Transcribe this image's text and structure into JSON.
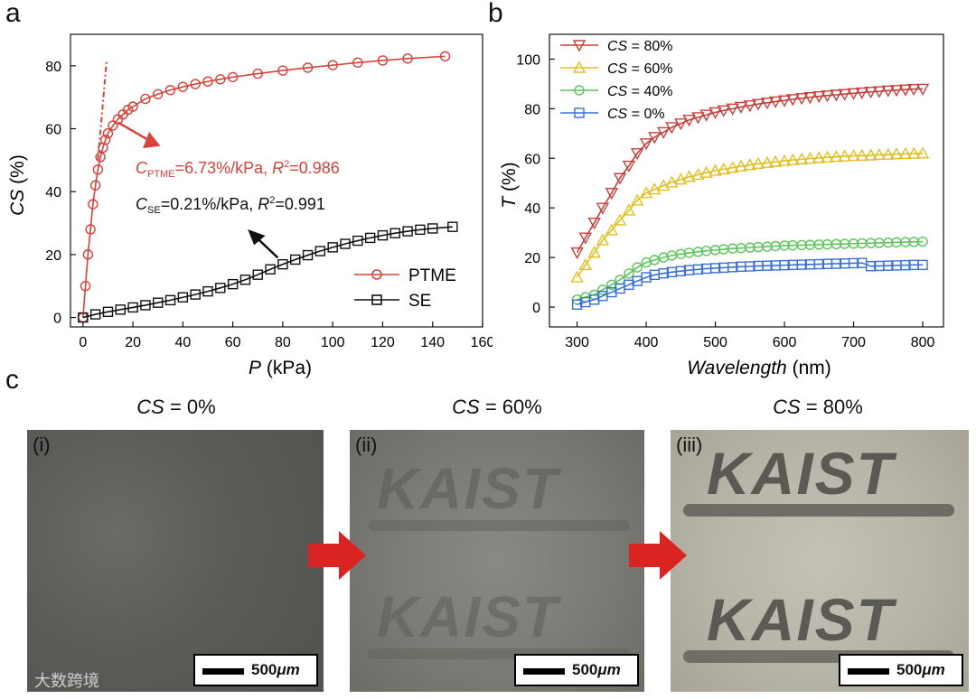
{
  "panels": {
    "a": "a",
    "b": "b",
    "c": "c"
  },
  "colors": {
    "ptme": "#d9413a",
    "se": "#111111",
    "cs80": "#c8403c",
    "cs60": "#e3c020",
    "cs40": "#5cc45a",
    "cs0": "#3b6fd8"
  },
  "chart_data": [
    {
      "type": "line",
      "title": "",
      "xlabel_italic": "P",
      "xlabel_unit": "(kPa)",
      "ylabel_italic": "CS",
      "ylabel_unit": "(%)",
      "xlim": [
        -5,
        160
      ],
      "ylim": [
        -3,
        90
      ],
      "xticks": [
        0,
        20,
        40,
        60,
        80,
        100,
        120,
        140,
        160
      ],
      "yticks": [
        0,
        20,
        40,
        60,
        80
      ],
      "legend_position": "bottom-right",
      "series": [
        {
          "name": "PTME",
          "marker": "circle",
          "color": "#d9413a",
          "x": [
            0,
            1,
            2,
            3,
            4,
            5,
            6,
            7,
            8,
            9,
            10,
            12,
            14,
            16,
            18,
            20,
            25,
            30,
            35,
            40,
            45,
            50,
            55,
            60,
            70,
            80,
            90,
            100,
            110,
            120,
            130,
            145
          ],
          "y": [
            0,
            10,
            20,
            28,
            36,
            42,
            47,
            51,
            54,
            56.5,
            58.5,
            61,
            63,
            64.5,
            66,
            67,
            69.5,
            71,
            72.3,
            73.3,
            74.2,
            75,
            75.7,
            76.4,
            77.5,
            78.5,
            79.4,
            80.2,
            81,
            81.7,
            82.3,
            83
          ]
        },
        {
          "name": "SE",
          "marker": "square",
          "color": "#111111",
          "x": [
            0,
            5,
            10,
            15,
            20,
            25,
            30,
            35,
            40,
            45,
            50,
            55,
            60,
            65,
            70,
            75,
            80,
            85,
            90,
            95,
            100,
            105,
            110,
            115,
            120,
            125,
            130,
            135,
            140,
            148
          ],
          "y": [
            0,
            1,
            1.8,
            2.5,
            3.2,
            3.9,
            4.7,
            5.5,
            6.4,
            7.3,
            8.3,
            9.4,
            10.6,
            12,
            13.6,
            15.3,
            16.9,
            18.4,
            19.8,
            21.1,
            22.3,
            23.4,
            24.4,
            25.3,
            26.1,
            26.8,
            27.4,
            27.9,
            28.3,
            28.8
          ]
        }
      ],
      "annotations": [
        {
          "text_main": "C",
          "text_sub": "PTME",
          "text_rest": "=6.73%/kPa, ",
          "r_label": "R",
          "r_sup": "2",
          "r_value": "=0.986",
          "color": "#d9413a"
        },
        {
          "text_main": "C",
          "text_sub": "SE",
          "text_rest": "=0.21%/kPa, ",
          "r_label": "R",
          "r_sup": "2",
          "r_value": "=0.991",
          "color": "#111111"
        }
      ]
    },
    {
      "type": "line",
      "title": "",
      "xlabel_italic": "Wavelength",
      "xlabel_unit": "(nm)",
      "ylabel_italic": "T",
      "ylabel_unit": "(%)",
      "xlim": [
        260,
        830
      ],
      "ylim": [
        -8,
        110
      ],
      "xticks": [
        300,
        400,
        500,
        600,
        700,
        800
      ],
      "yticks": [
        0,
        20,
        40,
        60,
        80,
        100
      ],
      "legend_position": "top-left",
      "x": [
        300,
        312,
        325,
        337,
        350,
        362,
        375,
        387,
        400,
        412,
        425,
        437,
        450,
        462,
        475,
        487,
        500,
        512,
        525,
        537,
        550,
        562,
        575,
        587,
        600,
        612,
        625,
        637,
        650,
        662,
        675,
        687,
        700,
        712,
        725,
        737,
        750,
        762,
        775,
        787,
        800
      ],
      "series": [
        {
          "name": "CS = 80%",
          "label_italic": "CS",
          "label_rest": " = 80%",
          "marker": "triangle-down",
          "color": "#c8403c",
          "values": [
            22,
            28,
            34,
            40,
            46,
            52,
            57,
            62,
            66,
            68.5,
            70.5,
            72.5,
            74,
            75.5,
            76.5,
            77.5,
            78.5,
            79.3,
            80,
            80.7,
            81.3,
            81.9,
            82.4,
            82.9,
            83.3,
            83.8,
            84.2,
            84.6,
            85,
            85.3,
            85.6,
            85.9,
            86.2,
            86.5,
            86.8,
            87,
            87.3,
            87.5,
            87.7,
            87.9,
            88
          ]
        },
        {
          "name": "CS = 60%",
          "label_italic": "CS",
          "label_rest": " = 60%",
          "marker": "triangle-up",
          "color": "#e3c020",
          "values": [
            12,
            17,
            22,
            27,
            31,
            35,
            39,
            43,
            46,
            47.5,
            49,
            50.3,
            51.5,
            52.5,
            53.4,
            54.2,
            55,
            55.6,
            56.2,
            56.8,
            57.3,
            57.8,
            58.2,
            58.6,
            59,
            59.3,
            59.6,
            59.9,
            60.2,
            60.4,
            60.6,
            60.8,
            61,
            61.1,
            61.2,
            61.4,
            61.5,
            61.7,
            61.8,
            61.9,
            62
          ]
        },
        {
          "name": "CS = 40%",
          "label_italic": "CS",
          "label_rest": " = 40%",
          "marker": "circle",
          "color": "#5cc45a",
          "values": [
            3,
            4,
            5,
            7,
            9,
            11,
            13.5,
            16,
            18,
            19,
            20,
            20.8,
            21.4,
            21.9,
            22.3,
            22.7,
            23,
            23.3,
            23.6,
            23.8,
            24,
            24.2,
            24.4,
            24.6,
            24.8,
            24.9,
            25,
            25.1,
            25.2,
            25.3,
            25.4,
            25.5,
            25.6,
            25.7,
            25.8,
            25.9,
            26,
            26.1,
            26.2,
            26.3,
            26.4
          ]
        },
        {
          "name": "CS = 0%",
          "label_italic": "CS",
          "label_rest": " = 0%",
          "marker": "square",
          "color": "#3b6fd8",
          "values": [
            1,
            2,
            3,
            4.5,
            6,
            7.5,
            9,
            10.5,
            12,
            13,
            13.6,
            14.1,
            14.5,
            14.9,
            15.2,
            15.5,
            15.7,
            15.9,
            16.1,
            16.3,
            16.4,
            16.6,
            16.7,
            16.8,
            16.9,
            17,
            17.1,
            17.2,
            17.3,
            17.4,
            17.5,
            17.6,
            17.7,
            17.8,
            16.5,
            16.6,
            16.7,
            16.8,
            16.9,
            17,
            17
          ]
        }
      ]
    }
  ],
  "photos": [
    {
      "title_italic": "CS",
      "title_rest": " = 0%",
      "label": "(i)",
      "scale": "500",
      "scale_unit": "μm"
    },
    {
      "title_italic": "CS",
      "title_rest": " = 60%",
      "label": "(ii)",
      "scale": "500",
      "scale_unit": "μm",
      "logo_text": "KAIST"
    },
    {
      "title_italic": "CS",
      "title_rest": " = 80%",
      "label": "(iii)",
      "scale": "500",
      "scale_unit": "μm",
      "logo_text": "KAIST"
    }
  ],
  "watermark": "大数跨境"
}
